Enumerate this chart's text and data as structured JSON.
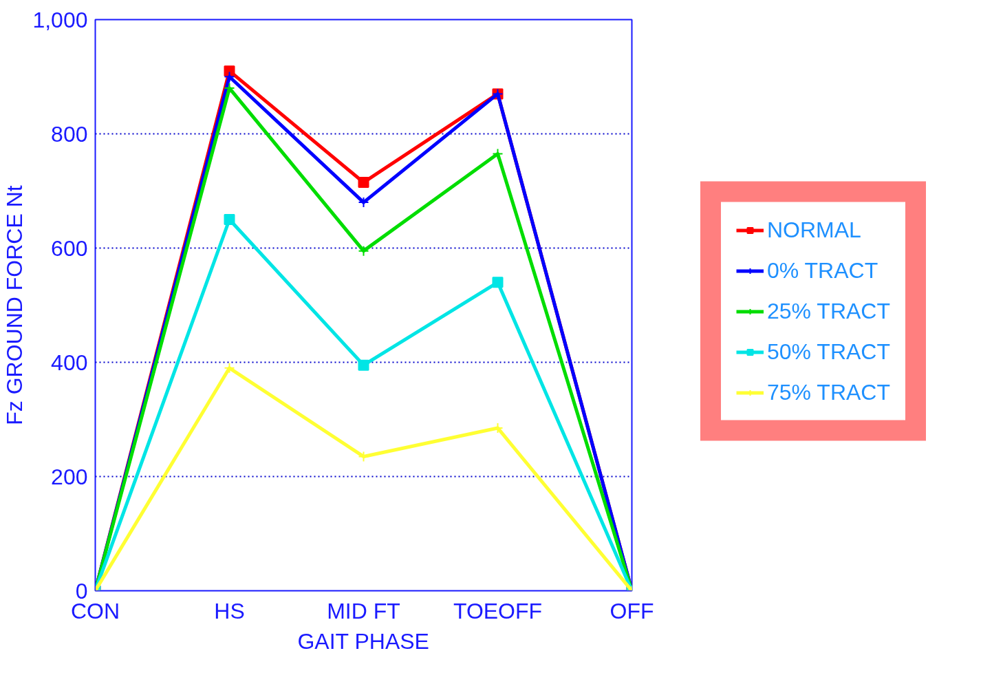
{
  "chart_data": {
    "type": "line",
    "xlabel": "GAIT PHASE",
    "ylabel": "Fz GROUND FORCE Nt",
    "categories": [
      "CON",
      "HS",
      "MID FT",
      "TOEOFF",
      "OFF"
    ],
    "ylim": [
      0,
      1000
    ],
    "yticks": [
      0,
      200,
      400,
      600,
      800,
      {
        "value": 1000,
        "label": "1,000"
      }
    ],
    "grid": "y",
    "legend": "right",
    "series": [
      {
        "name": "NORMAL",
        "color": "#ff0000",
        "marker": "square",
        "values": [
          0,
          910,
          715,
          870,
          0
        ]
      },
      {
        "name": "0% TRACT",
        "color": "#0000ff",
        "marker": "cross",
        "values": [
          0,
          900,
          680,
          870,
          0
        ]
      },
      {
        "name": "25% TRACT",
        "color": "#00dd00",
        "marker": "cross",
        "values": [
          0,
          880,
          595,
          765,
          0
        ]
      },
      {
        "name": "50% TRACT",
        "color": "#00e5e5",
        "marker": "square",
        "values": [
          0,
          650,
          395,
          540,
          0
        ]
      },
      {
        "name": "75% TRACT",
        "color": "#ffff33",
        "marker": "cross",
        "values": [
          0,
          390,
          235,
          285,
          0
        ]
      }
    ]
  }
}
